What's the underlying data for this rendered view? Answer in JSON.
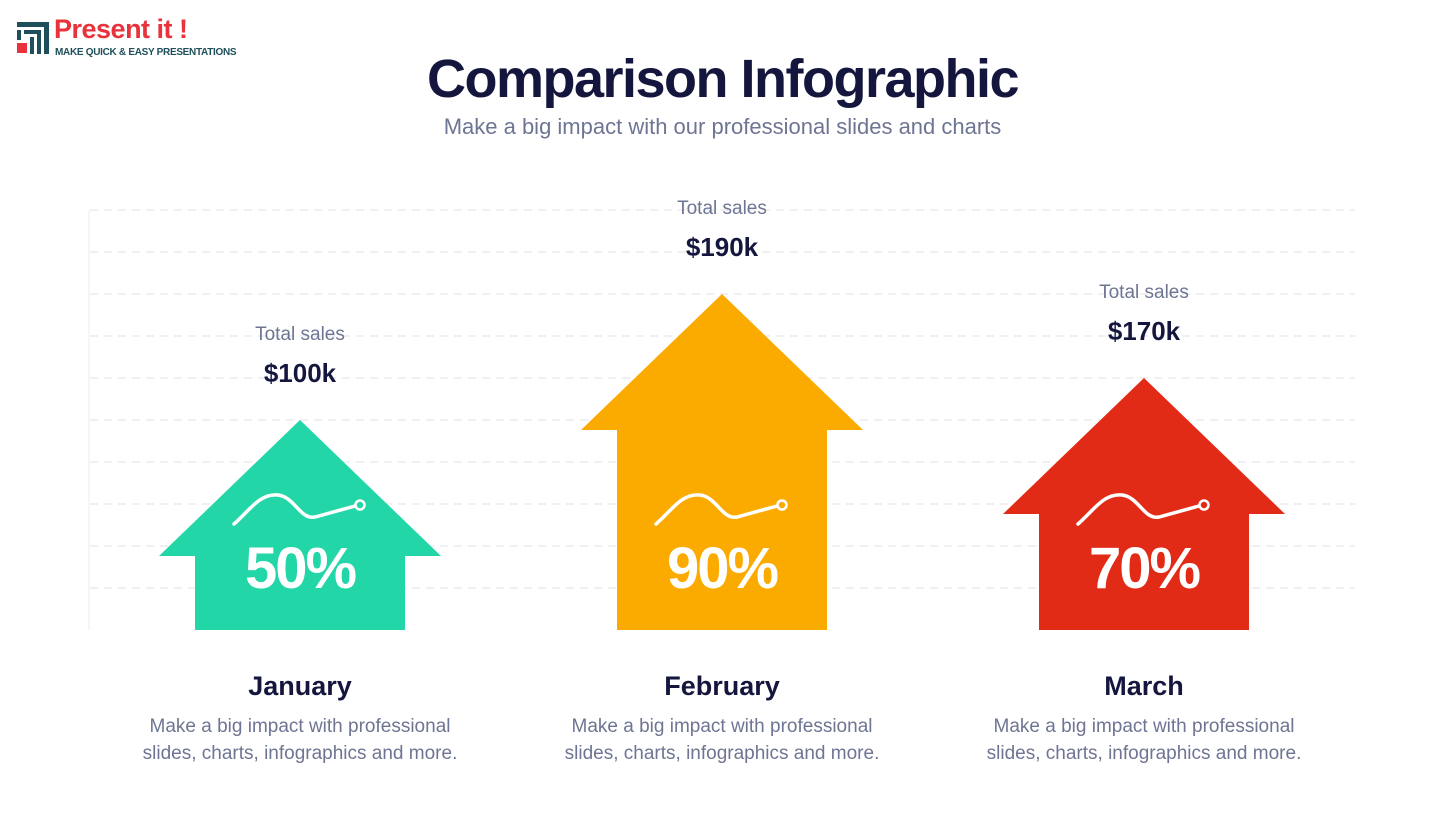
{
  "logo": {
    "name": "Present it !",
    "tagline": "MAKE QUICK & EASY PRESENTATIONS"
  },
  "header": {
    "title": "Comparison Infographic",
    "subtitle": "Make a big impact with our professional slides and charts"
  },
  "items": [
    {
      "caption": "Total sales",
      "amount": "$100k",
      "percent": "50%",
      "month": "January",
      "description": "Make a big impact with professional slides, charts, infographics and more.",
      "color": "#22d6a8"
    },
    {
      "caption": "Total sales",
      "amount": "$190k",
      "percent": "90%",
      "month": "February",
      "description": "Make a big impact with professional slides, charts, infographics and more.",
      "color": "#fbab00"
    },
    {
      "caption": "Total sales",
      "amount": "$170k",
      "percent": "70%",
      "month": "March",
      "description": "Make a big impact with professional slides, charts, infographics and more.",
      "color": "#e22b17"
    }
  ]
}
